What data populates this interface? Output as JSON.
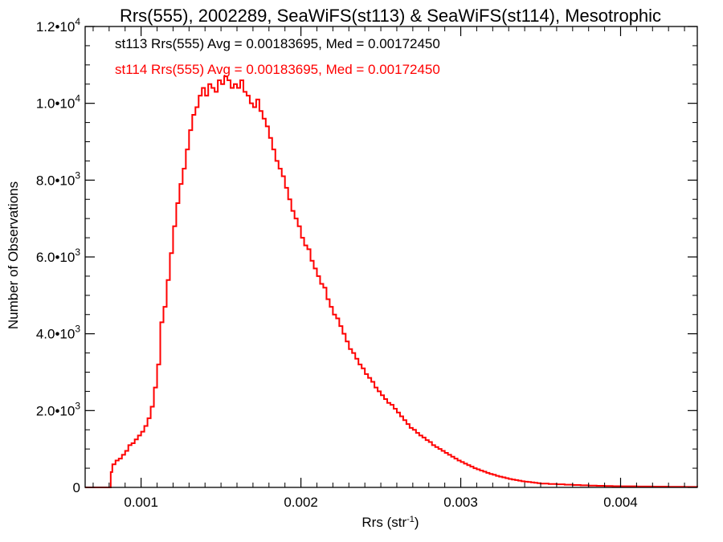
{
  "chart_data": {
    "type": "histogram",
    "title": "Rrs(555), 2002289, SeaWiFS(st113) & SeaWiFS(st114), Mesotrophic",
    "xlabel": "Rrs (str",
    "xlabel_sup": "-1",
    "xlabel_close": ")",
    "ylabel": "Number of Observations",
    "xlim": [
      0.00065,
      0.00448
    ],
    "ylim": [
      0,
      12000
    ],
    "x_ticks": [
      {
        "value": 0.001,
        "label": "0.001"
      },
      {
        "value": 0.002,
        "label": "0.002"
      },
      {
        "value": 0.003,
        "label": "0.003"
      },
      {
        "value": 0.004,
        "label": "0.004"
      }
    ],
    "y_ticks": [
      {
        "value": 0,
        "mant": "0",
        "exp": ""
      },
      {
        "value": 2000,
        "mant": "2.0•10",
        "exp": "3"
      },
      {
        "value": 4000,
        "mant": "4.0•10",
        "exp": "3"
      },
      {
        "value": 6000,
        "mant": "6.0•10",
        "exp": "3"
      },
      {
        "value": 8000,
        "mant": "8.0•10",
        "exp": "3"
      },
      {
        "value": 10000,
        "mant": "1.0•10",
        "exp": "4"
      },
      {
        "value": 12000,
        "mant": "1.2•10",
        "exp": "4"
      }
    ],
    "legend": [
      {
        "text": "st113 Rrs(555) Avg = 0.00183695, Med = 0.00172450",
        "color": "#000000"
      },
      {
        "text": "st114 Rrs(555) Avg = 0.00183695, Med = 0.00172450",
        "color": "#ff0000"
      }
    ],
    "series": [
      {
        "color": "#ff0000",
        "points": [
          [
            0.00065,
            0
          ],
          [
            0.0008,
            0
          ],
          [
            0.00081,
            400
          ],
          [
            0.00082,
            600
          ],
          [
            0.00084,
            700
          ],
          [
            0.00086,
            750
          ],
          [
            0.00088,
            850
          ],
          [
            0.0009,
            950
          ],
          [
            0.00092,
            1100
          ],
          [
            0.00094,
            1150
          ],
          [
            0.00096,
            1250
          ],
          [
            0.00098,
            1350
          ],
          [
            0.001,
            1450
          ],
          [
            0.00102,
            1600
          ],
          [
            0.00104,
            1800
          ],
          [
            0.00106,
            2100
          ],
          [
            0.00108,
            2600
          ],
          [
            0.0011,
            3200
          ],
          [
            0.00112,
            4300
          ],
          [
            0.00114,
            4700
          ],
          [
            0.00116,
            5400
          ],
          [
            0.00118,
            6100
          ],
          [
            0.0012,
            6800
          ],
          [
            0.00122,
            7400
          ],
          [
            0.00124,
            7900
          ],
          [
            0.00126,
            8300
          ],
          [
            0.00128,
            8800
          ],
          [
            0.0013,
            9300
          ],
          [
            0.00132,
            9700
          ],
          [
            0.00134,
            9900
          ],
          [
            0.00136,
            10200
          ],
          [
            0.00138,
            10400
          ],
          [
            0.0014,
            10200
          ],
          [
            0.00142,
            10500
          ],
          [
            0.00144,
            10400
          ],
          [
            0.00146,
            10300
          ],
          [
            0.00148,
            10600
          ],
          [
            0.0015,
            10500
          ],
          [
            0.00152,
            10700
          ],
          [
            0.00154,
            10600
          ],
          [
            0.00156,
            10400
          ],
          [
            0.00158,
            10500
          ],
          [
            0.0016,
            10400
          ],
          [
            0.00162,
            10600
          ],
          [
            0.00164,
            10300
          ],
          [
            0.00166,
            10200
          ],
          [
            0.00168,
            10000
          ],
          [
            0.0017,
            9900
          ],
          [
            0.00172,
            10100
          ],
          [
            0.00174,
            9800
          ],
          [
            0.00176,
            9600
          ],
          [
            0.00178,
            9400
          ],
          [
            0.0018,
            9100
          ],
          [
            0.00182,
            8800
          ],
          [
            0.00184,
            8500
          ],
          [
            0.00186,
            8300
          ],
          [
            0.00188,
            8100
          ],
          [
            0.0019,
            7800
          ],
          [
            0.00192,
            7500
          ],
          [
            0.00194,
            7200
          ],
          [
            0.00196,
            7000
          ],
          [
            0.00198,
            6800
          ],
          [
            0.002,
            6500
          ],
          [
            0.00202,
            6300
          ],
          [
            0.00204,
            6200
          ],
          [
            0.00206,
            5900
          ],
          [
            0.00208,
            5700
          ],
          [
            0.0021,
            5500
          ],
          [
            0.00212,
            5300
          ],
          [
            0.00214,
            5200
          ],
          [
            0.00216,
            4900
          ],
          [
            0.00218,
            4700
          ],
          [
            0.0022,
            4500
          ],
          [
            0.00222,
            4400
          ],
          [
            0.00224,
            4200
          ],
          [
            0.00226,
            4000
          ],
          [
            0.00228,
            3800
          ],
          [
            0.0023,
            3600
          ],
          [
            0.00232,
            3500
          ],
          [
            0.00234,
            3350
          ],
          [
            0.00236,
            3200
          ],
          [
            0.00238,
            3100
          ],
          [
            0.0024,
            2950
          ],
          [
            0.00242,
            2850
          ],
          [
            0.00244,
            2750
          ],
          [
            0.00246,
            2600
          ],
          [
            0.00248,
            2500
          ],
          [
            0.0025,
            2400
          ],
          [
            0.00252,
            2300
          ],
          [
            0.00254,
            2200
          ],
          [
            0.00256,
            2150
          ],
          [
            0.00258,
            2050
          ],
          [
            0.0026,
            1950
          ],
          [
            0.00262,
            1850
          ],
          [
            0.00264,
            1750
          ],
          [
            0.00266,
            1650
          ],
          [
            0.00268,
            1550
          ],
          [
            0.0027,
            1500
          ],
          [
            0.00272,
            1420
          ],
          [
            0.00274,
            1350
          ],
          [
            0.00276,
            1300
          ],
          [
            0.00278,
            1230
          ],
          [
            0.0028,
            1180
          ],
          [
            0.00282,
            1100
          ],
          [
            0.00284,
            1050
          ],
          [
            0.00286,
            1000
          ],
          [
            0.00288,
            950
          ],
          [
            0.0029,
            900
          ],
          [
            0.00292,
            850
          ],
          [
            0.00294,
            800
          ],
          [
            0.00296,
            750
          ],
          [
            0.00298,
            700
          ],
          [
            0.003,
            660
          ],
          [
            0.00302,
            620
          ],
          [
            0.00304,
            580
          ],
          [
            0.00306,
            540
          ],
          [
            0.00308,
            500
          ],
          [
            0.0031,
            470
          ],
          [
            0.00312,
            440
          ],
          [
            0.00314,
            410
          ],
          [
            0.00316,
            380
          ],
          [
            0.00318,
            350
          ],
          [
            0.0032,
            330
          ],
          [
            0.00322,
            300
          ],
          [
            0.00324,
            280
          ],
          [
            0.00326,
            260
          ],
          [
            0.00328,
            240
          ],
          [
            0.0033,
            220
          ],
          [
            0.00332,
            205
          ],
          [
            0.00334,
            190
          ],
          [
            0.00336,
            175
          ],
          [
            0.00338,
            160
          ],
          [
            0.0034,
            150
          ],
          [
            0.00342,
            140
          ],
          [
            0.00344,
            130
          ],
          [
            0.00346,
            120
          ],
          [
            0.00348,
            110
          ],
          [
            0.0035,
            100
          ],
          [
            0.00355,
            90
          ],
          [
            0.0036,
            80
          ],
          [
            0.00365,
            70
          ],
          [
            0.0037,
            62
          ],
          [
            0.00375,
            55
          ],
          [
            0.0038,
            48
          ],
          [
            0.00385,
            42
          ],
          [
            0.0039,
            37
          ],
          [
            0.00395,
            32
          ],
          [
            0.004,
            28
          ],
          [
            0.0041,
            24
          ],
          [
            0.0042,
            20
          ],
          [
            0.0043,
            17
          ],
          [
            0.0044,
            14
          ],
          [
            0.00448,
            12
          ]
        ]
      }
    ]
  }
}
